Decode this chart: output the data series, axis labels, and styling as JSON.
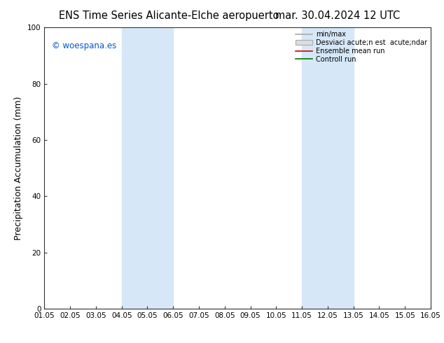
{
  "title_left": "ENS Time Series Alicante-Elche aeropuerto",
  "title_right": "mar. 30.04.2024 12 UTC",
  "ylabel": "Precipitation Accumulation (mm)",
  "ylim": [
    0,
    100
  ],
  "xlim": [
    0,
    15
  ],
  "xtick_labels": [
    "01.05",
    "02.05",
    "03.05",
    "04.05",
    "05.05",
    "06.05",
    "07.05",
    "08.05",
    "09.05",
    "10.05",
    "11.05",
    "12.05",
    "13.05",
    "14.05",
    "15.05",
    "16.05"
  ],
  "ytick_values": [
    0,
    20,
    40,
    60,
    80,
    100
  ],
  "shaded_regions": [
    {
      "x_start": 3.0,
      "x_end": 5.0,
      "color": "#d6e8f7",
      "alpha": 1.0
    },
    {
      "x_start": 10.0,
      "x_end": 12.0,
      "color": "#d6e8f7",
      "alpha": 1.0
    }
  ],
  "copyright_text": "© woespana.es",
  "copyright_color": "#0055cc",
  "legend_entries": [
    {
      "label": "min/max",
      "color": "#aaaaaa",
      "lw": 1.2,
      "type": "line"
    },
    {
      "label": "Desviaci acute;n est  acute;ndar",
      "color": "#dddddd",
      "edgecolor": "#aaaaaa",
      "type": "fill"
    },
    {
      "label": "Ensemble mean run",
      "color": "#cc0000",
      "lw": 1.2,
      "type": "line"
    },
    {
      "label": "Controll run",
      "color": "#007700",
      "lw": 1.2,
      "type": "line"
    }
  ],
  "background_color": "#ffffff",
  "title_fontsize": 10.5,
  "label_fontsize": 9,
  "tick_fontsize": 7.5,
  "copyright_fontsize": 8.5
}
